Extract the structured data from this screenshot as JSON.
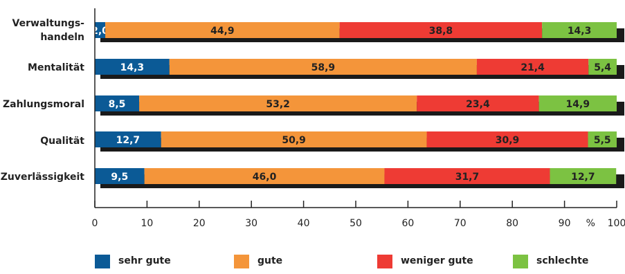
{
  "chart_data": {
    "type": "bar",
    "orientation": "horizontal",
    "stacked": true,
    "categories": [
      "Verwaltungs-\nhandeln",
      "Mentalität",
      "Zahlungsmoral",
      "Qualität",
      "Zuverlässigkeit"
    ],
    "series": [
      {
        "name": "sehr gute",
        "color": "#0b5a96",
        "values": [
          2.0,
          14.3,
          8.5,
          12.7,
          9.5
        ],
        "labels": [
          "2,0",
          "14,3",
          "8,5",
          "12,7",
          "9,5"
        ]
      },
      {
        "name": "gute",
        "color": "#f4953a",
        "values": [
          44.9,
          58.9,
          53.2,
          50.9,
          46.0
        ],
        "labels": [
          "44,9",
          "58,9",
          "53,2",
          "50,9",
          "46,0"
        ]
      },
      {
        "name": "weniger gute",
        "color": "#ee3b34",
        "values": [
          38.8,
          21.4,
          23.4,
          30.9,
          31.7
        ],
        "labels": [
          "38,8",
          "21,4",
          "23,4",
          "30,9",
          "31,7"
        ]
      },
      {
        "name": "schlechte",
        "color": "#7cc242",
        "values": [
          14.3,
          5.4,
          14.9,
          5.5,
          12.7
        ],
        "labels": [
          "14,3",
          "5,4",
          "14,9",
          "5,5",
          "12,7"
        ]
      }
    ],
    "xlim": [
      0,
      100
    ],
    "xticks": [
      0,
      10,
      20,
      30,
      40,
      50,
      60,
      70,
      80,
      90,
      100
    ],
    "xunit": "%",
    "legend": "bottom",
    "grid": false
  }
}
